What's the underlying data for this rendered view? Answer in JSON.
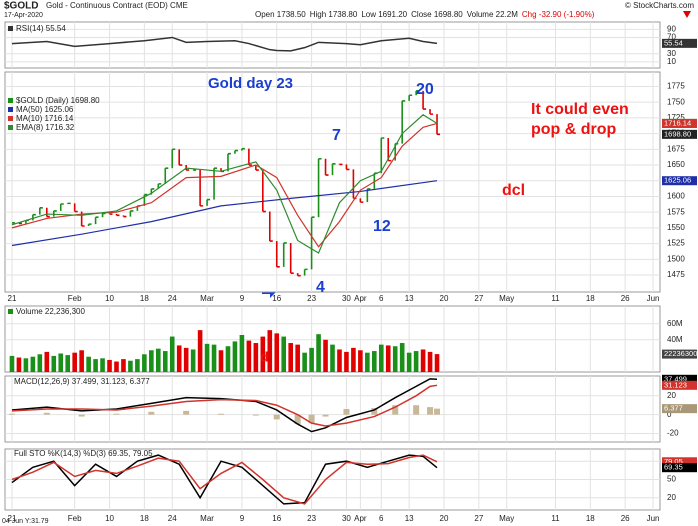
{
  "header": {
    "symbol": "$GOLD",
    "title": "Gold - Continuous Contract (EOD) CME",
    "copyright": "© StockCharts.com",
    "date": "17-Apr-2020",
    "quote": [
      "Open 1738.50",
      "High 1738.80",
      "Low 1691.20",
      "Close 1698.80",
      "Volume 22.2M",
      "Chg -32.90 (-1.90%)"
    ],
    "corner_label": "04 Jun Y:31.79"
  },
  "chart_data": [
    {
      "type": "line",
      "ylim": [
        -5,
        108
      ],
      "yticks": [
        90,
        70,
        30,
        10
      ],
      "series": [
        {
          "name": "RSI(14) 55.54",
          "color": "#333333",
          "x": [
            0,
            5,
            9,
            14,
            19,
            23,
            25,
            28,
            32,
            34,
            37,
            38,
            40,
            42,
            44,
            48,
            50,
            53,
            57,
            59,
            61
          ],
          "values": [
            55,
            60,
            48,
            55,
            62,
            70,
            58,
            60,
            62,
            55,
            40,
            38,
            37,
            45,
            58,
            55,
            52,
            62,
            68,
            60,
            55.54
          ]
        }
      ],
      "tags": [
        {
          "value": 55.54,
          "label": "55.54",
          "color": "#333333"
        }
      ]
    },
    {
      "type": "price",
      "ylim": [
        1448,
        1798
      ],
      "yticks": [
        1775,
        1750,
        1725,
        1700,
        1675,
        1650,
        1625,
        1600,
        1575,
        1550,
        1525,
        1500,
        1475
      ],
      "xlim": [
        -1,
        93
      ],
      "xticks": [
        {
          "value": 0,
          "label": "21"
        },
        {
          "value": 9,
          "label": "Feb"
        },
        {
          "value": 14,
          "label": "10"
        },
        {
          "value": 19,
          "label": "18"
        },
        {
          "value": 23,
          "label": "24"
        },
        {
          "value": 28,
          "label": "Mar"
        },
        {
          "value": 33,
          "label": "9"
        },
        {
          "value": 38,
          "label": "16"
        },
        {
          "value": 43,
          "label": "23"
        },
        {
          "value": 48,
          "label": "30"
        },
        {
          "value": 50,
          "label": "Apr"
        },
        {
          "value": 53,
          "label": "6"
        },
        {
          "value": 57,
          "label": "13"
        },
        {
          "value": 62,
          "label": "20"
        },
        {
          "value": 67,
          "label": "27"
        },
        {
          "value": 71,
          "label": "May"
        },
        {
          "value": 78,
          "label": "11"
        },
        {
          "value": 83,
          "label": "18"
        },
        {
          "value": 88,
          "label": "26"
        },
        {
          "value": 92,
          "label": "Jun"
        }
      ],
      "grid": true,
      "series": [
        {
          "name": "$GOLD (Daily) 1698.80",
          "color": "#1a8f1a",
          "down_color": "#e00000",
          "values": [
            1558,
            1557,
            1562,
            1571,
            1582,
            1568,
            1577,
            1588,
            1589,
            1576,
            1553,
            1556,
            1567,
            1573,
            1572,
            1570,
            1568,
            1577,
            1585,
            1603,
            1612,
            1620,
            1645,
            1675,
            1650,
            1642,
            1642,
            1585,
            1595,
            1645,
            1640,
            1668,
            1673,
            1676,
            1650,
            1642,
            1576,
            1529,
            1488,
            1526,
            1478,
            1474,
            1484,
            1567,
            1660,
            1634,
            1652,
            1651,
            1643,
            1597,
            1591,
            1612,
            1637,
            1693,
            1657,
            1684,
            1752,
            1761,
            1768,
            1739,
            1731,
            1698.8
          ]
        },
        {
          "name": "MA(50) 1625.06",
          "color": "#1f2fa8",
          "type": "line",
          "x": [
            0,
            10,
            20,
            30,
            40,
            50,
            61
          ],
          "values": [
            1522,
            1540,
            1560,
            1585,
            1597,
            1608,
            1625.06
          ]
        },
        {
          "name": "MA(10) 1716.14",
          "color": "#d0342c",
          "type": "line",
          "x": [
            0,
            5,
            10,
            15,
            20,
            25,
            30,
            35,
            38,
            41,
            44,
            47,
            50,
            53,
            56,
            59,
            61
          ],
          "values": [
            1550,
            1565,
            1572,
            1575,
            1590,
            1630,
            1632,
            1650,
            1630,
            1570,
            1520,
            1560,
            1610,
            1630,
            1680,
            1710,
            1716.14
          ]
        },
        {
          "name": "EMA(8) 1716.32",
          "color": "#2e8b2e",
          "type": "line",
          "x": [
            0,
            5,
            10,
            15,
            20,
            25,
            30,
            35,
            38,
            41,
            44,
            47,
            50,
            53,
            56,
            59,
            61
          ],
          "values": [
            1555,
            1572,
            1570,
            1577,
            1605,
            1645,
            1640,
            1655,
            1610,
            1530,
            1510,
            1590,
            1625,
            1640,
            1700,
            1730,
            1716.32
          ]
        }
      ],
      "tags": [
        {
          "value": 1716.32,
          "label": "1716.32",
          "color": "#2e8b2e"
        },
        {
          "value": 1716.14,
          "label": "1716.14",
          "color": "#d0342c"
        },
        {
          "value": 1698.8,
          "label": "1698.80",
          "color": "#222222"
        },
        {
          "value": 1625.06,
          "label": "1625.06",
          "color": "#1f2fa8"
        }
      ],
      "annotations": [
        "Gold day 23",
        "20",
        "7",
        "12",
        "4",
        "It could even",
        "pop & drop",
        "dcl",
        "d"
      ]
    },
    {
      "type": "bar",
      "ylim": [
        0,
        82000000
      ],
      "yticks": [
        {
          "value": 60000000,
          "label": "60M"
        },
        {
          "value": 40000000,
          "label": "40M"
        }
      ],
      "series": [
        {
          "name": "Volume 22,236,300",
          "color": "#1a8f1a",
          "down_color": "#e00000",
          "values": [
            20000000,
            18000000,
            17000000,
            19000000,
            22000000,
            25000000,
            20000000,
            23000000,
            21000000,
            24000000,
            27000000,
            19000000,
            16000000,
            17000000,
            15000000,
            13000000,
            16000000,
            14000000,
            16000000,
            22000000,
            27000000,
            29000000,
            26000000,
            44000000,
            33000000,
            30000000,
            28000000,
            52000000,
            35000000,
            34000000,
            27000000,
            32000000,
            38000000,
            46000000,
            39000000,
            36000000,
            44000000,
            52000000,
            48000000,
            44000000,
            36000000,
            34000000,
            24000000,
            30000000,
            47000000,
            40000000,
            34000000,
            28000000,
            25000000,
            30000000,
            27000000,
            24000000,
            26000000,
            34000000,
            33000000,
            32000000,
            36000000,
            24000000,
            26000000,
            28000000,
            25000000,
            22236300
          ]
        }
      ],
      "tags": [
        {
          "value": 22236300,
          "label": "22236300",
          "color": "#444444"
        }
      ]
    },
    {
      "type": "line",
      "title": "MACD(12,26,9) 37.499, 31.123, 6.377",
      "ylim": [
        -29,
        41
      ],
      "yticks": [
        20,
        0,
        -20
      ],
      "series": [
        {
          "color": "#c8b89a",
          "type": "bar",
          "x": [
            0,
            5,
            10,
            15,
            20,
            25,
            30,
            35,
            38,
            41,
            43,
            45,
            48,
            52,
            55,
            58,
            60,
            61
          ],
          "values": [
            1,
            2,
            -2,
            1,
            3,
            4,
            1,
            -1,
            -5,
            -10,
            -9,
            -2,
            6,
            7,
            10,
            10,
            8,
            6.377
          ]
        },
        {
          "color": "#000000",
          "x": [
            0,
            5,
            10,
            15,
            20,
            25,
            30,
            35,
            38,
            41,
            43,
            45,
            48,
            52,
            55,
            58,
            60,
            61
          ],
          "values": [
            5,
            8,
            4,
            6,
            12,
            18,
            17,
            14,
            5,
            -10,
            -18,
            -14,
            -3,
            5,
            18,
            30,
            38,
            37.499
          ]
        },
        {
          "color": "#d0342c",
          "x": [
            0,
            5,
            10,
            15,
            20,
            25,
            30,
            35,
            38,
            41,
            43,
            45,
            48,
            52,
            55,
            58,
            60,
            61
          ],
          "values": [
            4,
            6,
            6,
            5,
            9,
            14,
            16,
            15,
            10,
            0,
            -9,
            -12,
            -9,
            -2,
            8,
            20,
            30,
            31.123
          ]
        }
      ],
      "tags": [
        {
          "value": 37.499,
          "label": "37.499",
          "color": "#000000"
        },
        {
          "value": 31.123,
          "label": "31.123",
          "color": "#d0342c"
        },
        {
          "value": 6.377,
          "label": "6.377",
          "color": "#a89878"
        }
      ]
    },
    {
      "type": "line",
      "title": "Full STO %K(14,3) %D(3) 69.35, 79.05",
      "ylim": [
        0,
        100
      ],
      "yticks": [
        80,
        50,
        20
      ],
      "series": [
        {
          "color": "#000000",
          "x": [
            0,
            3,
            6,
            9,
            12,
            15,
            18,
            21,
            24,
            27,
            30,
            33,
            36,
            39,
            42,
            45,
            48,
            51,
            54,
            57,
            59,
            61
          ],
          "values": [
            45,
            70,
            80,
            40,
            75,
            55,
            80,
            90,
            75,
            20,
            80,
            70,
            40,
            10,
            12,
            75,
            80,
            70,
            80,
            90,
            88,
            69.35
          ]
        },
        {
          "color": "#d0342c",
          "x": [
            0,
            3,
            6,
            9,
            12,
            15,
            18,
            21,
            24,
            27,
            30,
            33,
            36,
            39,
            42,
            45,
            48,
            51,
            54,
            57,
            59,
            61
          ],
          "values": [
            50,
            62,
            78,
            55,
            65,
            60,
            72,
            85,
            80,
            35,
            60,
            78,
            50,
            20,
            10,
            50,
            78,
            75,
            76,
            86,
            90,
            79.05
          ]
        }
      ],
      "tags": [
        {
          "value": 79.05,
          "label": "79.05",
          "color": "#d0342c"
        },
        {
          "value": 69.35,
          "label": "69.35",
          "color": "#000000"
        }
      ]
    }
  ]
}
